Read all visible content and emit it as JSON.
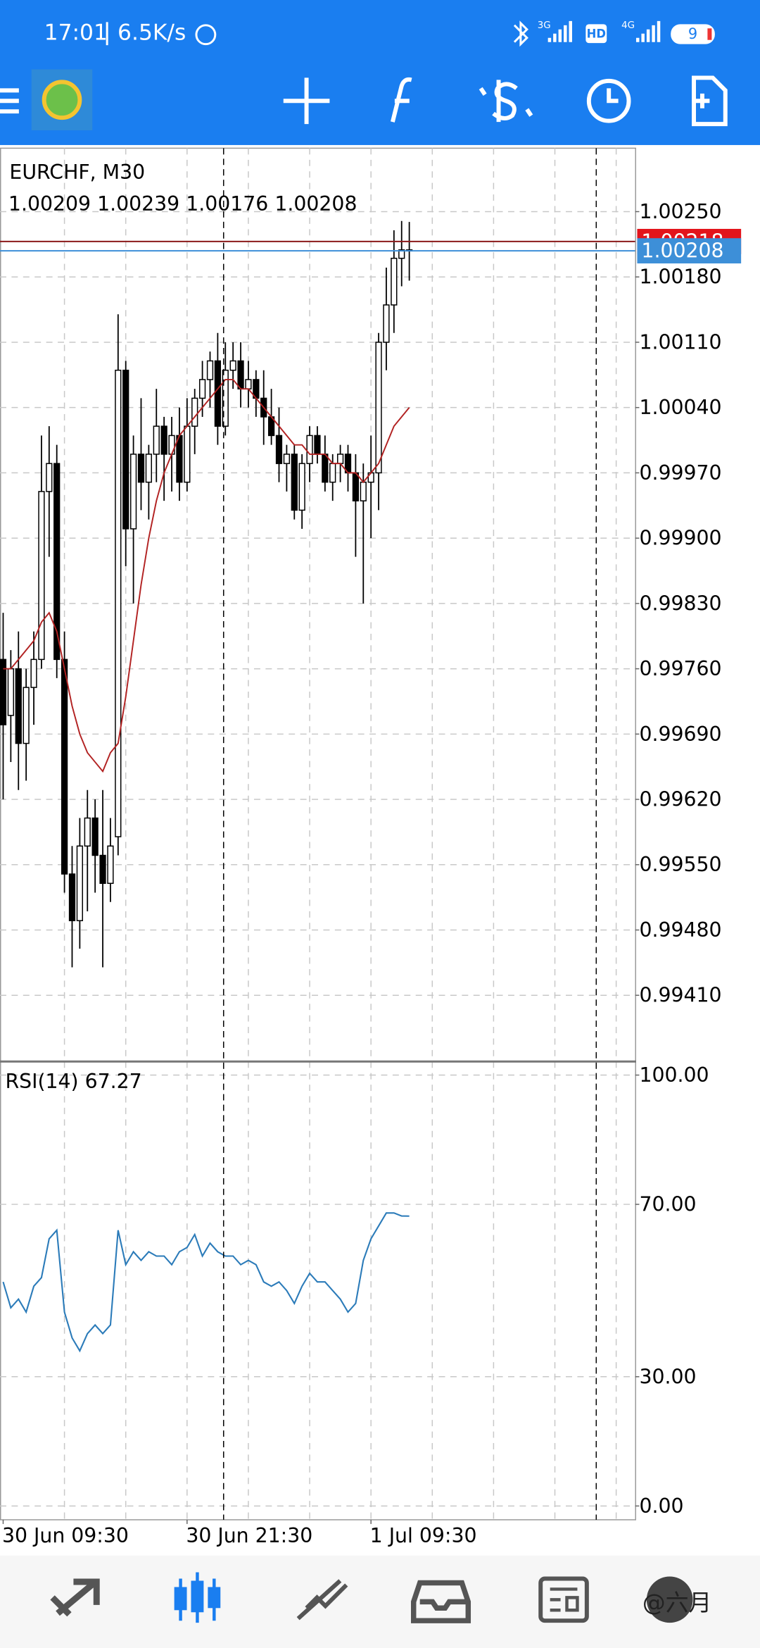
{
  "status_bar": {
    "time": "17:01",
    "speed": "6.5K/s",
    "network1": "3G",
    "hd": "HD",
    "network2": "4G",
    "battery": "9"
  },
  "watermark": "@六月",
  "chart_data": [
    {
      "type": "candlestick",
      "title": "EURCHF, M30",
      "categories": [
        "30 Jun 09:30",
        null,
        null,
        null,
        null,
        null,
        null,
        null,
        null,
        null,
        null,
        null,
        null,
        null,
        null,
        null,
        null,
        null,
        null,
        null,
        null,
        null,
        null,
        null,
        "30 Jun 21:30",
        null,
        null,
        null,
        null,
        null,
        null,
        null,
        null,
        null,
        null,
        null,
        null,
        null,
        null,
        null,
        null,
        null,
        null,
        null,
        null,
        null,
        null,
        null,
        "1 Jul 09:30",
        null,
        null,
        null,
        null,
        null
      ],
      "open": [
        0.9977,
        0.9971,
        0.9976,
        0.9968,
        0.9974,
        0.9977,
        0.9995,
        0.9998,
        0.9977,
        0.9954,
        0.9949,
        0.9957,
        0.996,
        0.9956,
        0.9953,
        0.9958,
        1.0008,
        0.9991,
        0.9999,
        0.9996,
        0.9999,
        1.0002,
        0.9999,
        1.0001,
        0.9996,
        1.0002,
        1.0005,
        1.0007,
        1.0009,
        1.0002,
        1.0008,
        1.0009,
        1.0006,
        1.0007,
        1.0005,
        1.0003,
        1.0001,
        0.9998,
        0.9999,
        0.9993,
        0.9998,
        1.0001,
        0.9999,
        0.9996,
        0.9998,
        0.9999,
        0.9997,
        0.9994,
        0.9996,
        0.9997,
        1.0011,
        1.0015,
        1.002,
        1.00209
      ],
      "high": [
        0.9982,
        0.9978,
        0.998,
        0.9976,
        0.998,
        1.0001,
        1.0002,
        1.0,
        0.998,
        0.9957,
        0.996,
        0.9963,
        0.9962,
        0.9963,
        0.996,
        1.0014,
        1.0009,
        1.0001,
        1.0005,
        1.0,
        1.0006,
        1.0003,
        1.0003,
        1.0004,
        1.0005,
        1.0006,
        1.0009,
        1.001,
        1.0012,
        1.0011,
        1.0011,
        1.0011,
        1.0009,
        1.0008,
        1.0008,
        1.0006,
        1.0004,
        1.0,
        1.0,
        0.9999,
        1.0002,
        1.0002,
        1.0001,
        0.9999,
        1.0,
        1.0,
        0.9999,
        0.9998,
        1.0001,
        1.0012,
        1.0019,
        1.0023,
        1.0024,
        1.00239
      ],
      "low": [
        0.9962,
        0.9966,
        0.9963,
        0.9964,
        0.997,
        0.9976,
        0.9988,
        0.9975,
        0.9952,
        0.9944,
        0.9946,
        0.995,
        0.9952,
        0.9944,
        0.9951,
        0.9956,
        0.9987,
        0.9983,
        0.9993,
        0.9992,
        0.9996,
        0.9994,
        0.9995,
        0.9994,
        0.9995,
        0.9999,
        1.0003,
        1.0004,
        1.0,
        1.0001,
        1.0006,
        1.0004,
        1.0004,
        1.0003,
        1.0,
        1.0,
        0.9996,
        0.9995,
        0.9992,
        0.9991,
        0.9996,
        0.9998,
        0.9995,
        0.9994,
        0.9996,
        0.9995,
        0.9988,
        0.9983,
        0.999,
        0.9993,
        1.0008,
        1.0012,
        1.0017,
        1.00176
      ],
      "close": [
        0.997,
        0.9976,
        0.9968,
        0.9974,
        0.9977,
        0.9995,
        0.9998,
        0.9977,
        0.9954,
        0.9949,
        0.9957,
        0.996,
        0.9956,
        0.9953,
        0.9957,
        1.0008,
        0.9991,
        0.9999,
        0.9996,
        0.9999,
        1.0002,
        0.9999,
        1.0001,
        0.9996,
        1.0002,
        1.0005,
        1.0007,
        1.0009,
        1.0002,
        1.0008,
        1.0009,
        1.0006,
        1.0007,
        1.0005,
        1.0003,
        1.0001,
        0.9998,
        0.9999,
        0.9993,
        0.9998,
        1.0001,
        0.9999,
        0.9996,
        0.9998,
        0.9999,
        0.9997,
        0.9994,
        0.9996,
        0.9997,
        1.0011,
        1.0015,
        1.002,
        1.00209,
        1.00208
      ],
      "up_color": "#ffffff",
      "down_color": "#000000",
      "ma": {
        "color": "#b22222",
        "values": [
          0.9976,
          0.9976,
          0.9977,
          0.9978,
          0.9979,
          0.9981,
          0.9982,
          0.998,
          0.9976,
          0.9972,
          0.9969,
          0.9967,
          0.9966,
          0.9965,
          0.9967,
          0.9968,
          0.9973,
          0.9979,
          0.9985,
          0.999,
          0.9994,
          0.9997,
          0.9999,
          1.0001,
          1.0002,
          1.0003,
          1.0004,
          1.0005,
          1.0006,
          1.0007,
          1.0007,
          1.0006,
          1.0006,
          1.0005,
          1.0004,
          1.0003,
          1.0002,
          1.0001,
          1.0,
          1.0,
          0.9999,
          0.9999,
          0.9999,
          0.9998,
          0.9998,
          0.9997,
          0.9997,
          0.9996,
          0.9997,
          0.9998,
          1.0,
          1.0002,
          1.0003,
          1.0004
        ]
      },
      "ask": 1.00218,
      "ask_color": "#e3141b",
      "bid_color": "#3d8fd8",
      "ylim": [
        0.99339,
        1.00318
      ],
      "yticks": [
        {
          "value": 1.0025,
          "label": "1.00250"
        },
        {
          "value": 1.0018,
          "label": "1.00180"
        },
        {
          "value": 1.0011,
          "label": "1.00110"
        },
        {
          "value": 1.0004,
          "label": "1.00040"
        },
        {
          "value": 0.9997,
          "label": "0.99970"
        },
        {
          "value": 0.999,
          "label": "0.99900"
        },
        {
          "value": 0.9983,
          "label": "0.99830"
        },
        {
          "value": 0.9976,
          "label": "0.99760"
        },
        {
          "value": 0.9969,
          "label": "0.99690"
        },
        {
          "value": 0.9962,
          "label": "0.99620"
        },
        {
          "value": 0.9955,
          "label": "0.99550"
        },
        {
          "value": 0.9948,
          "label": "0.99480"
        },
        {
          "value": 0.9941,
          "label": "0.99410"
        }
      ],
      "grid": true
    },
    {
      "type": "line",
      "title": "RSI(14)",
      "color": "#2b7bb9",
      "values": [
        52,
        46,
        48,
        45,
        51,
        53,
        62,
        64,
        45,
        39,
        36,
        40,
        42,
        40,
        42,
        64,
        56,
        59,
        57,
        59,
        58,
        58,
        56,
        59,
        60,
        63,
        58,
        61,
        59,
        58,
        58,
        56,
        57,
        56,
        52,
        51,
        52,
        50,
        47,
        51,
        54,
        52,
        52,
        50,
        48,
        45,
        47,
        57,
        62,
        65,
        68,
        68,
        67.3,
        67.27
      ],
      "ylim": [
        -3.2,
        102.9
      ],
      "yticks": [
        {
          "value": 100,
          "label": "100.00"
        },
        {
          "value": 70,
          "label": "70.00"
        },
        {
          "value": 30,
          "label": "30.00"
        },
        {
          "value": 0,
          "label": "0.00"
        }
      ],
      "grid": true
    }
  ]
}
